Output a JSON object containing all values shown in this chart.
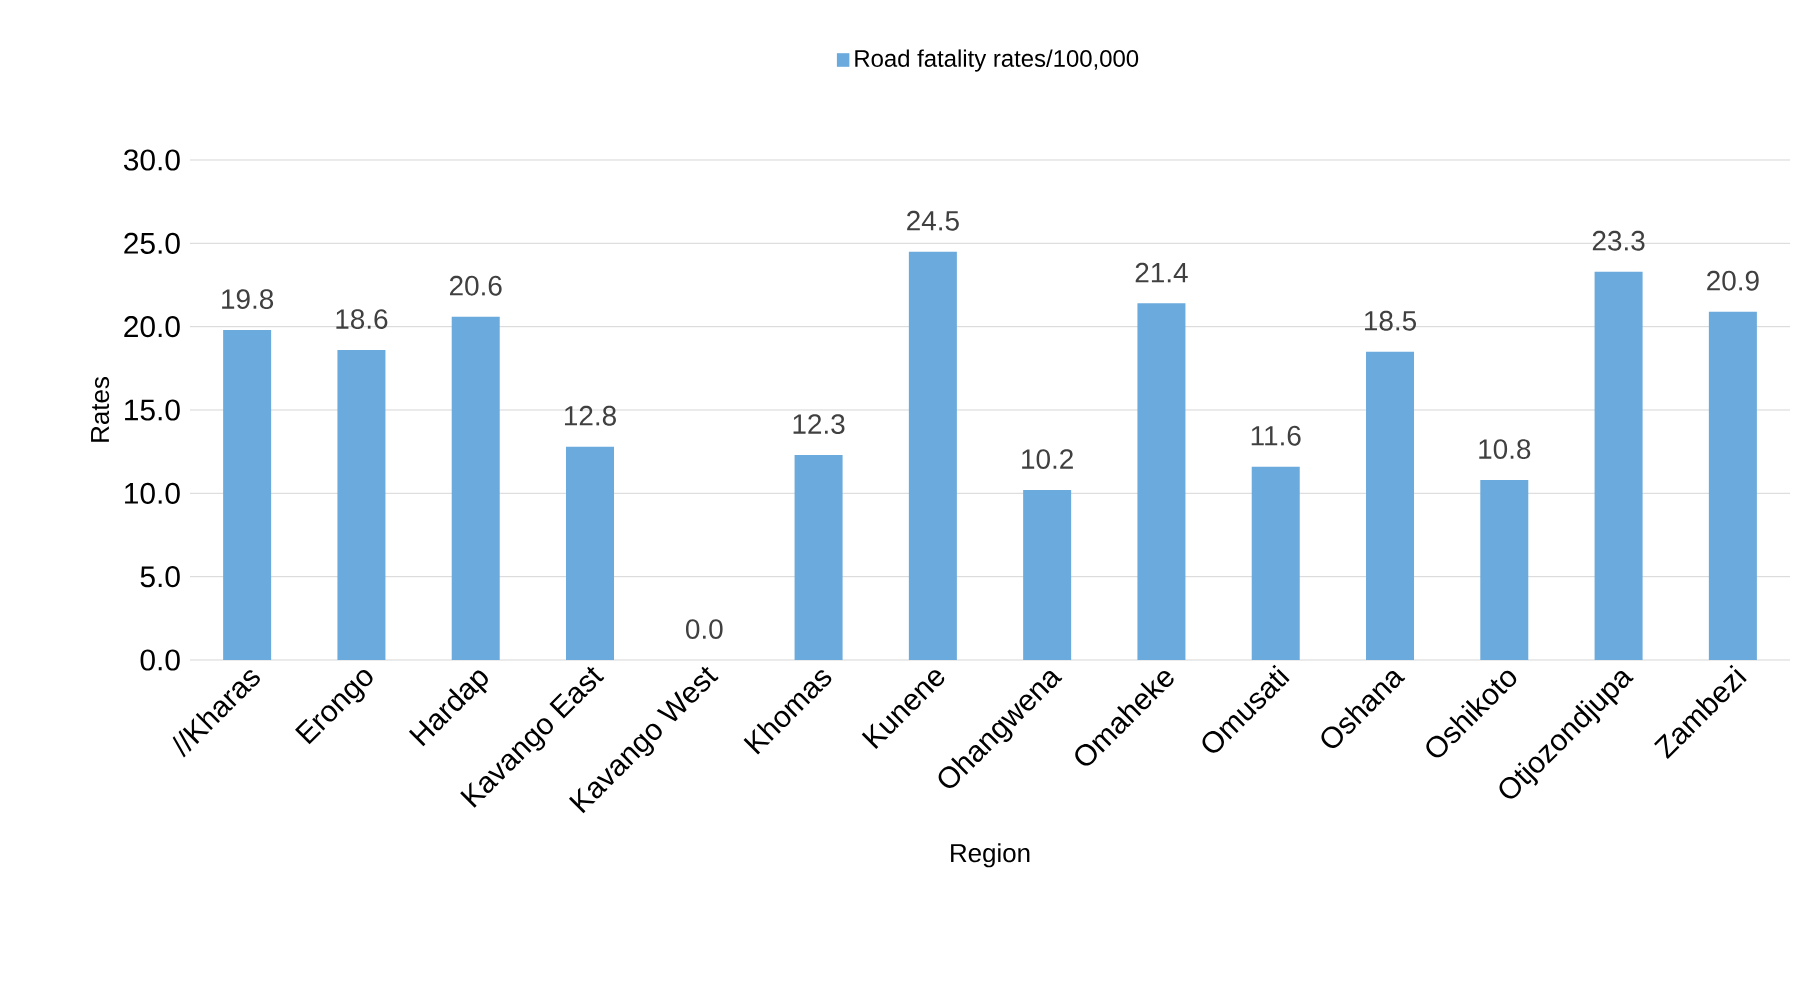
{
  "chart_data": {
    "type": "bar",
    "xlabel": "Region",
    "ylabel": "Rates",
    "categories": [
      "//Kharas",
      "Erongo",
      "Hardap",
      "Kavango East",
      "Kavango West",
      "Khomas",
      "Kunene",
      "Ohangwena",
      "Omaheke",
      "Omusati",
      "Oshana",
      "Oshikoto",
      "Otjozondjupa",
      "Zambezi"
    ],
    "series": [
      {
        "name": "Road fatality rates/100,000",
        "color": "#6aaadc",
        "values": [
          19.8,
          18.6,
          20.6,
          12.8,
          0.0,
          12.3,
          24.5,
          10.2,
          21.4,
          11.6,
          18.5,
          10.8,
          23.3,
          20.9
        ],
        "value_labels": [
          "19.8",
          "18.6",
          "20.6",
          "12.8",
          "0.0",
          "12.3",
          "24.5",
          "10.2",
          "21.4",
          "11.6",
          "18.5",
          "10.8",
          "23.3",
          "20.9"
        ]
      }
    ],
    "ylim": [
      0,
      30
    ],
    "yticks": [
      {
        "value": 0,
        "label": "0.0"
      },
      {
        "value": 5,
        "label": "5.0"
      },
      {
        "value": 10,
        "label": "10.0"
      },
      {
        "value": 15,
        "label": "15.0"
      },
      {
        "value": 20,
        "label": "20.0"
      },
      {
        "value": 25,
        "label": "25.0"
      },
      {
        "value": 30,
        "label": "30.0"
      }
    ],
    "grid": "y",
    "legend": "top"
  }
}
